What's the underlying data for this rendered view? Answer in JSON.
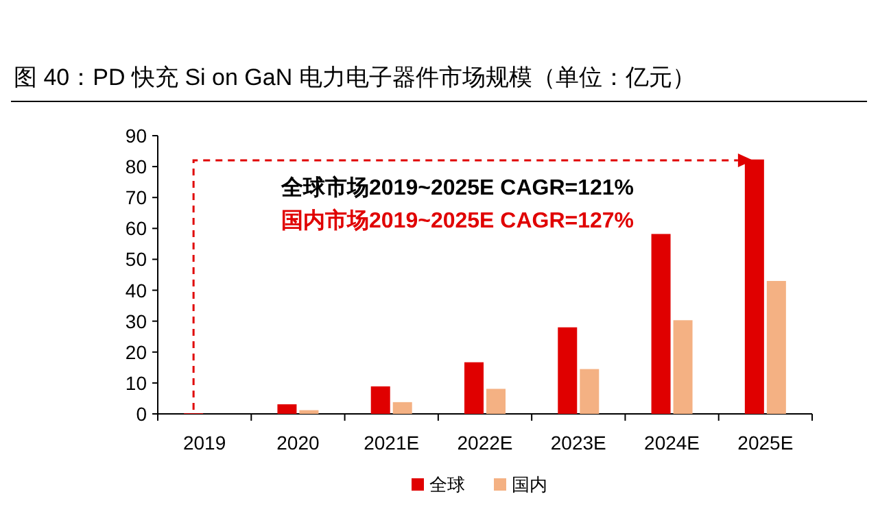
{
  "chart_data": {
    "type": "bar",
    "title": "图 40：PD 快充 Si on GaN 电力电子器件市场规模（单位：亿元）",
    "categories": [
      "2019",
      "2020",
      "2021E",
      "2022E",
      "2023E",
      "2024E",
      "2025E"
    ],
    "series": [
      {
        "name": "全球",
        "color": "#e00000",
        "values": [
          0.2,
          3.1,
          8.9,
          16.7,
          28,
          58.2,
          82.3
        ]
      },
      {
        "name": "国内",
        "color": "#f4b183",
        "values": [
          null,
          1.2,
          3.8,
          8.1,
          14.5,
          30.3,
          43
        ]
      }
    ],
    "ylim": [
      0,
      90
    ],
    "yticks": [
      0,
      10,
      20,
      30,
      40,
      50,
      60,
      70,
      80,
      90
    ],
    "annotations": [
      "全球市场2019~2025E CAGR=121%",
      "国内市场2019~2025E CAGR=127%"
    ],
    "grid": false,
    "legend": "bottom"
  }
}
